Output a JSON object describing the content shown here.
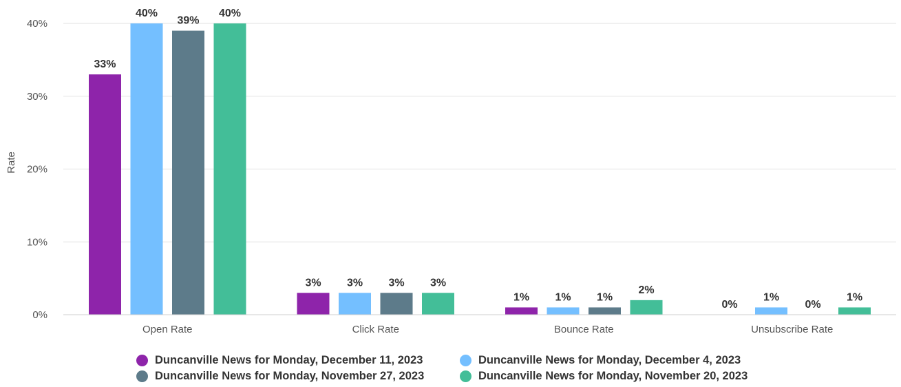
{
  "chart_data": {
    "type": "bar",
    "title": "",
    "xlabel": "",
    "ylabel": "Rate",
    "ylim": [
      0,
      40
    ],
    "yticks": [
      "0%",
      "10%",
      "20%",
      "30%",
      "40%"
    ],
    "ytick_values": [
      0,
      10,
      20,
      30,
      40
    ],
    "grid": true,
    "legend_position": "bottom",
    "categories": [
      "Open Rate",
      "Click Rate",
      "Bounce Rate",
      "Unsubscribe Rate"
    ],
    "series": [
      {
        "name": "Duncanville News for Monday, December 11, 2023",
        "color": "#8e24aa",
        "values": [
          33,
          3,
          1,
          0
        ],
        "labels": [
          "33%",
          "3%",
          "1%",
          "0%"
        ]
      },
      {
        "name": "Duncanville News for Monday, December 4, 2023",
        "color": "#74bfff",
        "values": [
          40,
          3,
          1,
          1
        ],
        "labels": [
          "40%",
          "3%",
          "1%",
          "1%"
        ]
      },
      {
        "name": "Duncanville News for Monday, November 27, 2023",
        "color": "#5d7b8a",
        "values": [
          39,
          3,
          1,
          0
        ],
        "labels": [
          "39%",
          "3%",
          "1%",
          "0%"
        ]
      },
      {
        "name": "Duncanville News for Monday, November 20, 2023",
        "color": "#43be98",
        "values": [
          40,
          3,
          2,
          1
        ],
        "labels": [
          "40%",
          "3%",
          "2%",
          "1%"
        ]
      }
    ]
  }
}
